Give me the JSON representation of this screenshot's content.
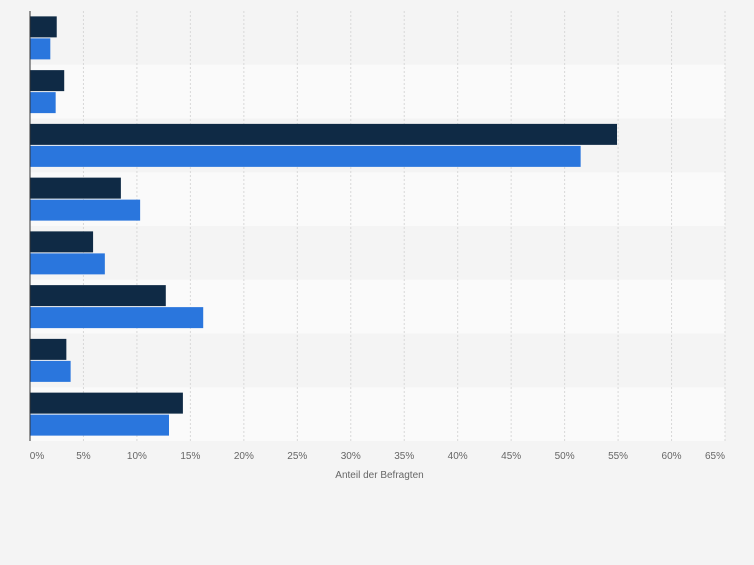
{
  "chart_data": {
    "type": "bar",
    "orientation": "horizontal",
    "xlabel": "Anteil der Befragten",
    "xlim": [
      0,
      65
    ],
    "x_ticks": [
      "0%",
      "5%",
      "10%",
      "15%",
      "20%",
      "25%",
      "30%",
      "35%",
      "40%",
      "45%",
      "50%",
      "55%",
      "60%",
      "65%"
    ],
    "x_tick_values": [
      0,
      5,
      10,
      15,
      20,
      25,
      30,
      35,
      40,
      45,
      50,
      55,
      60,
      65
    ],
    "grid": true,
    "categories": [
      "",
      "",
      "",
      "",
      "",
      "",
      "",
      ""
    ],
    "series": [
      {
        "color": "#0f2a45",
        "values": [
          2.5,
          3.2,
          54.9,
          8.5,
          5.9,
          12.7,
          3.4,
          14.3
        ]
      },
      {
        "color": "#2a76dd",
        "values": [
          1.9,
          2.4,
          51.5,
          10.3,
          7.0,
          16.2,
          3.8,
          13.0
        ]
      }
    ]
  }
}
